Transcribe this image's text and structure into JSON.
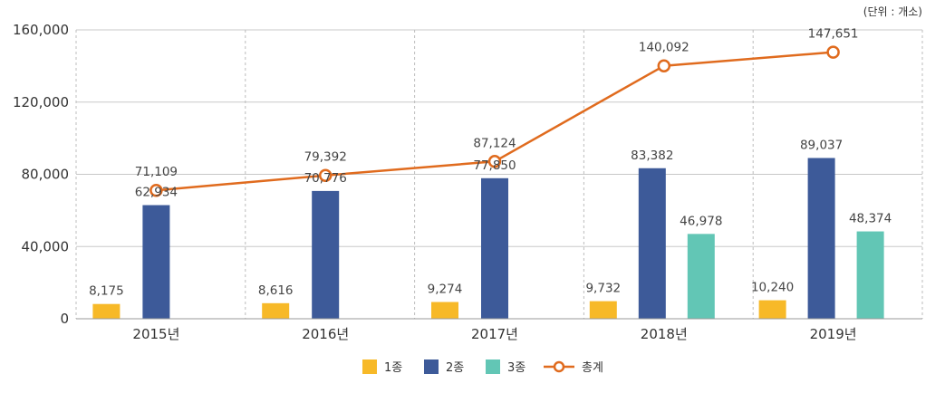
{
  "chart_data": {
    "type": "bar",
    "unit_note": "(단위 : 개소)",
    "categories": [
      "2015년",
      "2016년",
      "2017년",
      "2018년",
      "2019년"
    ],
    "series": [
      {
        "name": "1종",
        "type": "bar",
        "color": "#F7B928",
        "values": [
          8175,
          8616,
          9274,
          9732,
          10240
        ],
        "labels": [
          "8,175",
          "8,616",
          "9,274",
          "9,732",
          "10,240"
        ]
      },
      {
        "name": "2종",
        "type": "bar",
        "color": "#3D5A99",
        "values": [
          62934,
          70776,
          77850,
          83382,
          89037
        ],
        "labels": [
          "62,934",
          "70,776",
          "77,850",
          "83,382",
          "89,037"
        ]
      },
      {
        "name": "3종",
        "type": "bar",
        "color": "#62C6B5",
        "values": [
          null,
          null,
          null,
          46978,
          48374
        ],
        "labels": [
          "",
          "",
          "",
          "46,978",
          "48,374"
        ]
      },
      {
        "name": "총계",
        "type": "line",
        "color": "#E06B1E",
        "values": [
          71109,
          79392,
          87124,
          140092,
          147651
        ],
        "labels": [
          "71,109",
          "79,392",
          "87,124",
          "140,092",
          "147,651"
        ]
      }
    ],
    "y_ticks": [
      "0",
      "40,000",
      "80,000",
      "120,000",
      "160,000"
    ],
    "ylim": [
      0,
      160000
    ],
    "grid": true,
    "legend_position": "bottom"
  }
}
